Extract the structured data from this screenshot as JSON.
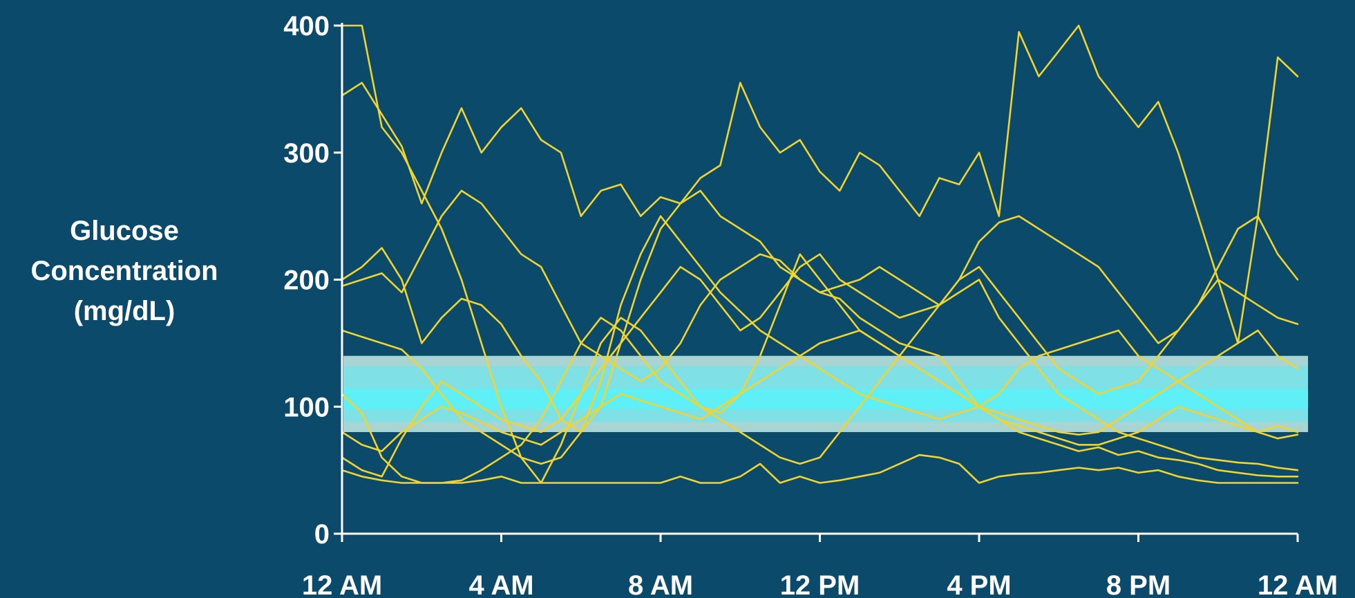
{
  "chart_data": {
    "type": "line",
    "ylabel_lines": [
      "Glucose",
      "Concentration",
      "(mg/dL)"
    ],
    "x_ticks": [
      "12 AM",
      "4 AM",
      "8 AM",
      "12 PM",
      "4 PM",
      "8 PM",
      "12 AM"
    ],
    "y_ticks": [
      0,
      100,
      200,
      300,
      400
    ],
    "xlim": [
      0,
      24
    ],
    "ylim": [
      0,
      400
    ],
    "grid": false,
    "legend": "none",
    "target_range": [
      80,
      140
    ],
    "colors": {
      "background": "#0b4a6b",
      "line": "#f0d430",
      "axis": "#ffffff",
      "band_outer": "#a8d4d4",
      "band_mid": "#7fe0e6",
      "band_inner": "#5ef0f6"
    },
    "series": [
      {
        "x": [
          0,
          0.5,
          1,
          1.5,
          2,
          2.5,
          3,
          3.5,
          4,
          4.5,
          5,
          5.5,
          6,
          6.5,
          7,
          7.5,
          8,
          8.5,
          9,
          9.5,
          10,
          10.5,
          11,
          11.5,
          12,
          12.5,
          13,
          13.5,
          14,
          14.5,
          15,
          15.5,
          16,
          16.5,
          17,
          17.5,
          18,
          18.5,
          19,
          19.5,
          20,
          20.5,
          21,
          21.5,
          22,
          22.5,
          23,
          23.5,
          24
        ],
        "y": [
          400,
          400,
          320,
          300,
          270,
          240,
          200,
          150,
          100,
          60,
          40,
          40,
          40,
          40,
          40,
          40,
          40,
          45,
          40,
          40,
          45,
          55,
          40,
          45,
          40,
          42,
          45,
          48,
          55,
          62,
          60,
          55,
          40,
          45,
          47,
          48,
          50,
          52,
          50,
          52,
          48,
          50,
          45,
          42,
          40,
          40,
          40,
          40,
          40
        ]
      },
      {
        "x": [
          0,
          0.5,
          1,
          1.5,
          2,
          2.5,
          3,
          3.5,
          4,
          4.5,
          5,
          5.5,
          6,
          6.5,
          7,
          7.5,
          8,
          8.5,
          9,
          9.5,
          10,
          10.5,
          11,
          11.5,
          12,
          12.5,
          13,
          13.5,
          14,
          14.5,
          15,
          15.5,
          16,
          16.5,
          17,
          17.5,
          18,
          18.5,
          19,
          19.5,
          20,
          20.5,
          21,
          21.5,
          22,
          22.5,
          23,
          23.5,
          24
        ],
        "y": [
          345,
          355,
          330,
          305,
          260,
          300,
          335,
          300,
          320,
          335,
          310,
          300,
          250,
          270,
          275,
          250,
          265,
          260,
          280,
          290,
          355,
          320,
          300,
          310,
          285,
          270,
          300,
          290,
          270,
          250,
          280,
          275,
          300,
          250,
          395,
          360,
          380,
          400,
          360,
          340,
          320,
          340,
          300,
          250,
          200,
          150,
          250,
          375,
          360
        ]
      },
      {
        "x": [
          0,
          0.5,
          1,
          1.5,
          2,
          2.5,
          3,
          3.5,
          4,
          4.5,
          5,
          5.5,
          6,
          6.5,
          7,
          7.5,
          8,
          8.5,
          9,
          9.5,
          10,
          10.5,
          11,
          11.5,
          12,
          12.5,
          13,
          13.5,
          14,
          14.5,
          15,
          15.5,
          16,
          16.5,
          17,
          17.5,
          18,
          18.5,
          19,
          19.5,
          20,
          20.5,
          21,
          21.5,
          22,
          22.5,
          23,
          23.5,
          24
        ],
        "y": [
          200,
          210,
          225,
          200,
          150,
          170,
          185,
          180,
          165,
          140,
          120,
          90,
          80,
          100,
          150,
          200,
          240,
          260,
          270,
          250,
          240,
          230,
          210,
          200,
          190,
          185,
          170,
          160,
          150,
          145,
          140,
          120,
          100,
          90,
          80,
          75,
          70,
          65,
          68,
          62,
          65,
          60,
          58,
          55,
          50,
          48,
          46,
          45,
          45
        ]
      },
      {
        "x": [
          0,
          0.5,
          1,
          1.5,
          2,
          2.5,
          3,
          3.5,
          4,
          4.5,
          5,
          5.5,
          6,
          6.5,
          7,
          7.5,
          8,
          8.5,
          9,
          9.5,
          10,
          10.5,
          11,
          11.5,
          12,
          12.5,
          13,
          13.5,
          14,
          14.5,
          15,
          15.5,
          16,
          16.5,
          17,
          17.5,
          18,
          18.5,
          19,
          19.5,
          20,
          20.5,
          21,
          21.5,
          22,
          22.5,
          23,
          23.5,
          24
        ],
        "y": [
          160,
          155,
          150,
          145,
          130,
          110,
          90,
          80,
          70,
          60,
          55,
          60,
          80,
          120,
          180,
          220,
          250,
          230,
          210,
          190,
          175,
          160,
          150,
          140,
          130,
          120,
          110,
          105,
          100,
          95,
          90,
          95,
          100,
          110,
          130,
          140,
          145,
          150,
          155,
          160,
          140,
          130,
          120,
          110,
          100,
          90,
          80,
          85,
          80
        ]
      },
      {
        "x": [
          0,
          0.5,
          1,
          1.5,
          2,
          2.5,
          3,
          3.5,
          4,
          4.5,
          5,
          5.5,
          6,
          6.5,
          7,
          7.5,
          8,
          8.5,
          9,
          9.5,
          10,
          10.5,
          11,
          11.5,
          12,
          12.5,
          13,
          13.5,
          14,
          14.5,
          15,
          15.5,
          16,
          16.5,
          17,
          17.5,
          18,
          18.5,
          19,
          19.5,
          20,
          20.5,
          21,
          21.5,
          22,
          22.5,
          23,
          23.5,
          24
        ],
        "y": [
          110,
          95,
          60,
          45,
          40,
          40,
          40,
          42,
          45,
          40,
          40,
          70,
          110,
          150,
          170,
          160,
          140,
          120,
          100,
          95,
          110,
          140,
          180,
          220,
          200,
          180,
          160,
          150,
          140,
          160,
          180,
          200,
          210,
          190,
          170,
          150,
          130,
          120,
          110,
          115,
          120,
          140,
          160,
          180,
          200,
          190,
          180,
          170,
          165
        ]
      },
      {
        "x": [
          0,
          0.5,
          1,
          1.5,
          2,
          2.5,
          3,
          3.5,
          4,
          4.5,
          5,
          5.5,
          6,
          6.5,
          7,
          7.5,
          8,
          8.5,
          9,
          9.5,
          10,
          10.5,
          11,
          11.5,
          12,
          12.5,
          13,
          13.5,
          14,
          14.5,
          15,
          15.5,
          16,
          16.5,
          17,
          17.5,
          18,
          18.5,
          19,
          19.5,
          20,
          20.5,
          21,
          21.5,
          22,
          22.5,
          23,
          23.5,
          24
        ],
        "y": [
          60,
          50,
          45,
          75,
          100,
          120,
          110,
          100,
          90,
          85,
          80,
          90,
          110,
          130,
          150,
          170,
          190,
          210,
          200,
          180,
          160,
          170,
          190,
          210,
          220,
          200,
          190,
          180,
          170,
          175,
          180,
          190,
          200,
          170,
          150,
          130,
          110,
          100,
          90,
          80,
          75,
          70,
          65,
          60,
          58,
          56,
          55,
          52,
          50
        ]
      },
      {
        "x": [
          0,
          0.5,
          1,
          1.5,
          2,
          2.5,
          3,
          3.5,
          4,
          4.5,
          5,
          5.5,
          6,
          6.5,
          7,
          7.5,
          8,
          8.5,
          9,
          9.5,
          10,
          10.5,
          11,
          11.5,
          12,
          12.5,
          13,
          13.5,
          14,
          14.5,
          15,
          15.5,
          16,
          16.5,
          17,
          17.5,
          18,
          18.5,
          19,
          19.5,
          20,
          20.5,
          21,
          21.5,
          22,
          22.5,
          23,
          23.5,
          24
        ],
        "y": [
          80,
          70,
          65,
          80,
          90,
          100,
          95,
          88,
          80,
          75,
          70,
          80,
          90,
          100,
          110,
          105,
          100,
          95,
          90,
          100,
          110,
          120,
          130,
          140,
          150,
          155,
          160,
          150,
          140,
          130,
          120,
          110,
          100,
          95,
          90,
          85,
          80,
          78,
          80,
          90,
          100,
          110,
          120,
          130,
          140,
          150,
          160,
          140,
          130
        ]
      },
      {
        "x": [
          0,
          0.5,
          1,
          1.5,
          2,
          2.5,
          3,
          3.5,
          4,
          4.5,
          5,
          5.5,
          6,
          6.5,
          7,
          7.5,
          8,
          8.5,
          9,
          9.5,
          10,
          10.5,
          11,
          11.5,
          12,
          12.5,
          13,
          13.5,
          14,
          14.5,
          15,
          15.5,
          16,
          16.5,
          17,
          17.5,
          18,
          18.5,
          19,
          19.5,
          20,
          20.5,
          21,
          21.5,
          22,
          22.5,
          23,
          23.5,
          24
        ],
        "y": [
          195,
          200,
          205,
          190,
          220,
          250,
          270,
          260,
          240,
          220,
          210,
          180,
          150,
          140,
          130,
          120,
          130,
          150,
          180,
          200,
          210,
          220,
          215,
          200,
          190,
          195,
          200,
          210,
          200,
          190,
          180,
          200,
          230,
          245,
          250,
          240,
          230,
          220,
          210,
          190,
          170,
          150,
          160,
          180,
          210,
          240,
          250,
          220,
          200
        ]
      },
      {
        "x": [
          0,
          0.5,
          1,
          1.5,
          2,
          2.5,
          3,
          3.5,
          4,
          4.5,
          5,
          5.5,
          6,
          6.5,
          7,
          7.5,
          8,
          8.5,
          9,
          9.5,
          10,
          10.5,
          11,
          11.5,
          12,
          12.5,
          13,
          13.5,
          14,
          14.5,
          15,
          15.5,
          16,
          16.5,
          17,
          17.5,
          18,
          18.5,
          19,
          19.5,
          20,
          20.5,
          21,
          21.5,
          22,
          22.5,
          23,
          23.5,
          24
        ],
        "y": [
          50,
          45,
          42,
          40,
          40,
          40,
          42,
          50,
          60,
          70,
          90,
          120,
          150,
          170,
          160,
          140,
          120,
          110,
          100,
          90,
          80,
          70,
          60,
          55,
          60,
          80,
          100,
          120,
          140,
          130,
          120,
          110,
          100,
          90,
          85,
          80,
          75,
          70,
          70,
          75,
          80,
          90,
          100,
          95,
          90,
          85,
          80,
          75,
          78
        ]
      }
    ]
  }
}
